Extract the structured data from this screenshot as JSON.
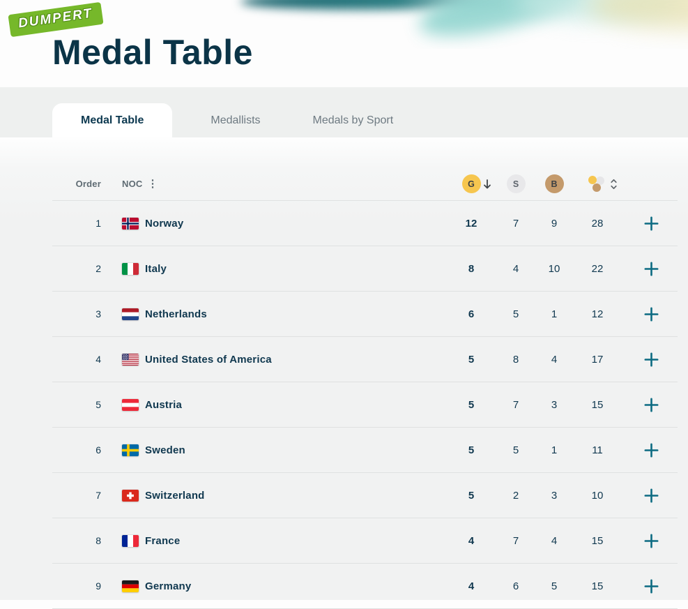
{
  "logo": {
    "text": "DUMPERT"
  },
  "page": {
    "title": "Medal Table"
  },
  "tabs": [
    {
      "label": "Medal Table",
      "active": true
    },
    {
      "label": "Medallists",
      "active": false
    },
    {
      "label": "Medals by Sport",
      "active": false
    }
  ],
  "table": {
    "columns": {
      "order": "Order",
      "noc": "NOC",
      "gold": "G",
      "silver": "S",
      "bronze": "B",
      "total": "total-medals"
    },
    "sort": {
      "column": "G",
      "direction": "descending"
    },
    "icons": {
      "column_menu": "vertical-ellipsis",
      "gold_sort": "arrow-down",
      "total_sort": "chevron-up-down"
    },
    "expand_label": "+",
    "rows": [
      {
        "order": "1",
        "noc": "Norway",
        "flag": "norway",
        "gold": "12",
        "silver": "7",
        "bronze": "9",
        "total": "28"
      },
      {
        "order": "2",
        "noc": "Italy",
        "flag": "italy",
        "gold": "8",
        "silver": "4",
        "bronze": "10",
        "total": "22"
      },
      {
        "order": "3",
        "noc": "Netherlands",
        "flag": "netherlands",
        "gold": "6",
        "silver": "5",
        "bronze": "1",
        "total": "12"
      },
      {
        "order": "4",
        "noc": "United States of America",
        "flag": "usa",
        "gold": "5",
        "silver": "8",
        "bronze": "4",
        "total": "17"
      },
      {
        "order": "5",
        "noc": "Austria",
        "flag": "austria",
        "gold": "5",
        "silver": "7",
        "bronze": "3",
        "total": "15"
      },
      {
        "order": "6",
        "noc": "Sweden",
        "flag": "sweden",
        "gold": "5",
        "silver": "5",
        "bronze": "1",
        "total": "11"
      },
      {
        "order": "7",
        "noc": "Switzerland",
        "flag": "switzerland",
        "gold": "5",
        "silver": "2",
        "bronze": "3",
        "total": "10"
      },
      {
        "order": "8",
        "noc": "France",
        "flag": "france",
        "gold": "4",
        "silver": "7",
        "bronze": "4",
        "total": "15"
      },
      {
        "order": "9",
        "noc": "Germany",
        "flag": "germany",
        "gold": "4",
        "silver": "6",
        "bronze": "5",
        "total": "15"
      }
    ]
  },
  "colors": {
    "gold": "#f6c64f",
    "silver": "#e8e8ea",
    "bronze": "#c49a6b",
    "accent_teal": "#0c6b82",
    "dark_text": "#10384f",
    "dumpert_green": "#76b82a",
    "tab_band": "#eef0ef"
  }
}
